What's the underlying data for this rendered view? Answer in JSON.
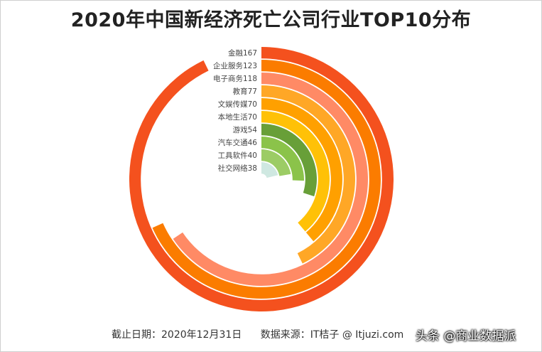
{
  "title": "2020年中国新经济死亡公司行业TOP10分布",
  "footer": {
    "date_text": "截止日期：2020年12月31日",
    "source_text": "数据来源：IT桔子 @ Itjuzi.com"
  },
  "watermark": "头条 @商业数据派",
  "chart_data": {
    "type": "radial-bar",
    "title": "2020年中国新经济死亡公司行业TOP10分布",
    "categories": [
      "金融",
      "企业服务",
      "电子商务",
      "教育",
      "文娱传媒",
      "本地生活",
      "游戏",
      "汽车交通",
      "工具软件",
      "社交网络"
    ],
    "values": [
      167,
      123,
      118,
      77,
      70,
      70,
      54,
      46,
      40,
      38
    ],
    "labels": [
      "金融167",
      "企业服务123",
      "电子商务118",
      "教育77",
      "文娱传媒70",
      "本地生活70",
      "游戏54",
      "汽车交通46",
      "工具软件40",
      "社交网络38"
    ],
    "max_value": 180,
    "colors": [
      "#f4511e",
      "#fb7c00",
      "#ff8a65",
      "#ffa726",
      "#ffa000",
      "#ffc107",
      "#689f38",
      "#8bc34a",
      "#9ccc65",
      "#cfe8e1"
    ]
  }
}
